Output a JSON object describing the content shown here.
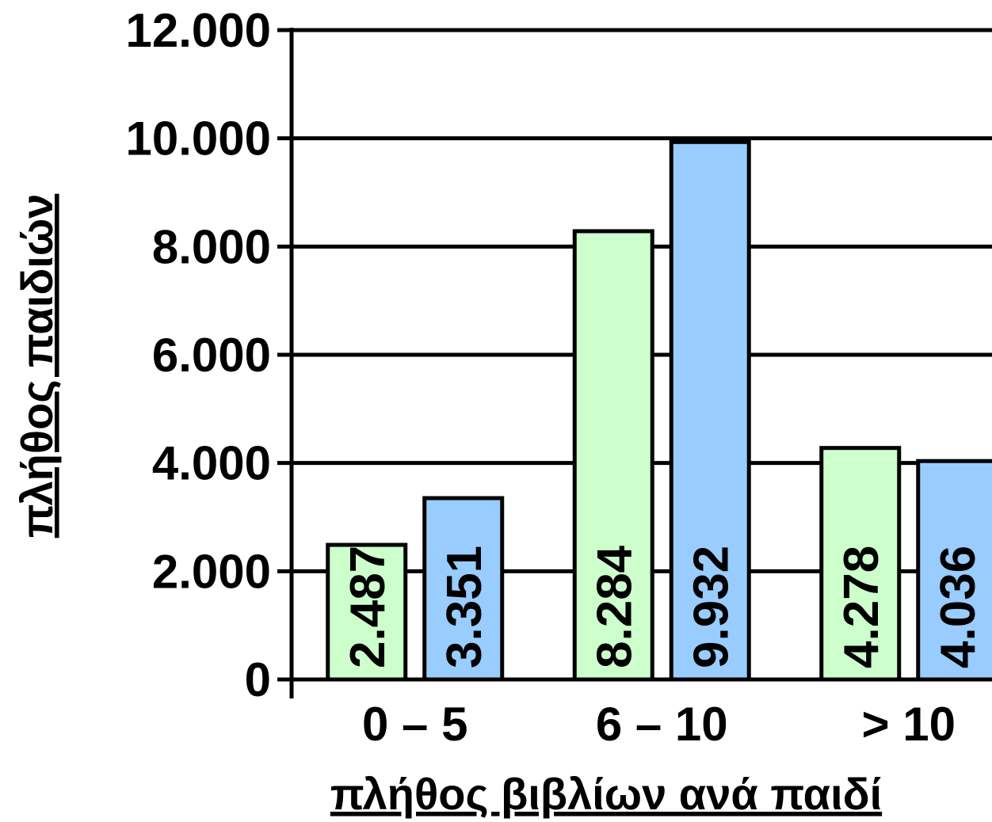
{
  "chart_data": {
    "type": "bar",
    "xlabel": "πλήθος βιβλίων ανά παιδί",
    "ylabel": "πλήθος παιδιών",
    "categories": [
      "0 – 5",
      "6 – 10",
      "> 10"
    ],
    "series": [
      {
        "color": "#ccffcc",
        "values": [
          2487,
          8284,
          4278
        ],
        "value_labels": [
          "2.487",
          "8.284",
          "4.278"
        ]
      },
      {
        "color": "#99ccff",
        "values": [
          3351,
          9932,
          4036
        ],
        "value_labels": [
          "3.351",
          "9.932",
          "4.036"
        ]
      }
    ],
    "ylim": [
      0,
      12000
    ],
    "yticks": [
      0,
      {
        "value": 2000,
        "label": "2.000"
      },
      {
        "value": 4000,
        "label": "4.000"
      },
      {
        "value": 6000,
        "label": "6.000"
      },
      {
        "value": 8000,
        "label": "8.000"
      },
      {
        "value": 10000,
        "label": "10.000"
      },
      {
        "value": 12000,
        "label": "12.000"
      }
    ],
    "grid": true
  }
}
